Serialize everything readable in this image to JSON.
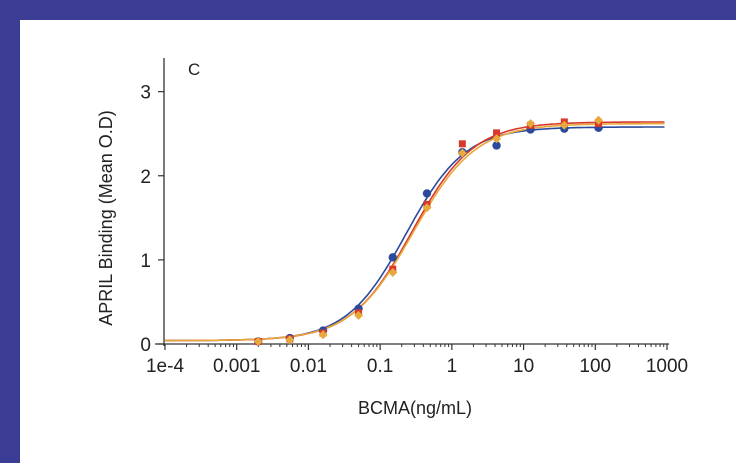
{
  "chart_data": {
    "type": "scatter",
    "panel_label": "C",
    "xlabel": "BCMA(ng/mL)",
    "ylabel": "APRIL Binding (Mean O.D)",
    "x_scale": "log",
    "xlim": [
      0.0001,
      1000
    ],
    "ylim": [
      0,
      3.4
    ],
    "x_ticks": [
      0.0001,
      0.001,
      0.01,
      0.1,
      1,
      10,
      100,
      1000
    ],
    "x_tick_labels": [
      "1e-4",
      "0.001",
      "0.01",
      "0.1",
      "1",
      "10",
      "100",
      "1000"
    ],
    "y_ticks": [
      0,
      1,
      2,
      3
    ],
    "y_tick_labels": [
      "0",
      "1",
      "2",
      "3"
    ],
    "grid": false,
    "series": [
      {
        "color": "#2b4a9c",
        "marker": "circle",
        "curve": {
          "bottom": 0.04,
          "top": 2.58,
          "ec50": 0.23,
          "hill": 1.05
        },
        "points": [
          {
            "x": 0.002,
            "y": 0.03
          },
          {
            "x": 0.0055,
            "y": 0.07
          },
          {
            "x": 0.016,
            "y": 0.16
          },
          {
            "x": 0.05,
            "y": 0.42
          },
          {
            "x": 0.15,
            "y": 1.03
          },
          {
            "x": 0.45,
            "y": 1.79
          },
          {
            "x": 1.4,
            "y": 2.28
          },
          {
            "x": 4.2,
            "y": 2.36
          },
          {
            "x": 12.5,
            "y": 2.55
          },
          {
            "x": 37,
            "y": 2.56
          },
          {
            "x": 111,
            "y": 2.57
          }
        ]
      },
      {
        "color": "#d9392b",
        "marker": "square",
        "curve": {
          "bottom": 0.04,
          "top": 2.64,
          "ec50": 0.28,
          "hill": 1.02
        },
        "points": [
          {
            "x": 0.002,
            "y": 0.03
          },
          {
            "x": 0.0055,
            "y": 0.06
          },
          {
            "x": 0.016,
            "y": 0.13
          },
          {
            "x": 0.05,
            "y": 0.37
          },
          {
            "x": 0.15,
            "y": 0.89
          },
          {
            "x": 0.45,
            "y": 1.66
          },
          {
            "x": 1.4,
            "y": 2.38
          },
          {
            "x": 4.2,
            "y": 2.51
          },
          {
            "x": 12.5,
            "y": 2.6
          },
          {
            "x": 37,
            "y": 2.64
          },
          {
            "x": 111,
            "y": 2.62
          }
        ]
      },
      {
        "color": "#e8a83a",
        "marker": "diamond",
        "curve": {
          "bottom": 0.04,
          "top": 2.62,
          "ec50": 0.29,
          "hill": 1.0
        },
        "points": [
          {
            "x": 0.002,
            "y": 0.03
          },
          {
            "x": 0.0055,
            "y": 0.05
          },
          {
            "x": 0.016,
            "y": 0.11
          },
          {
            "x": 0.05,
            "y": 0.34
          },
          {
            "x": 0.15,
            "y": 0.85
          },
          {
            "x": 0.45,
            "y": 1.62
          },
          {
            "x": 1.4,
            "y": 2.27
          },
          {
            "x": 4.2,
            "y": 2.44
          },
          {
            "x": 12.5,
            "y": 2.62
          },
          {
            "x": 37,
            "y": 2.6
          },
          {
            "x": 111,
            "y": 2.66
          }
        ]
      }
    ]
  }
}
